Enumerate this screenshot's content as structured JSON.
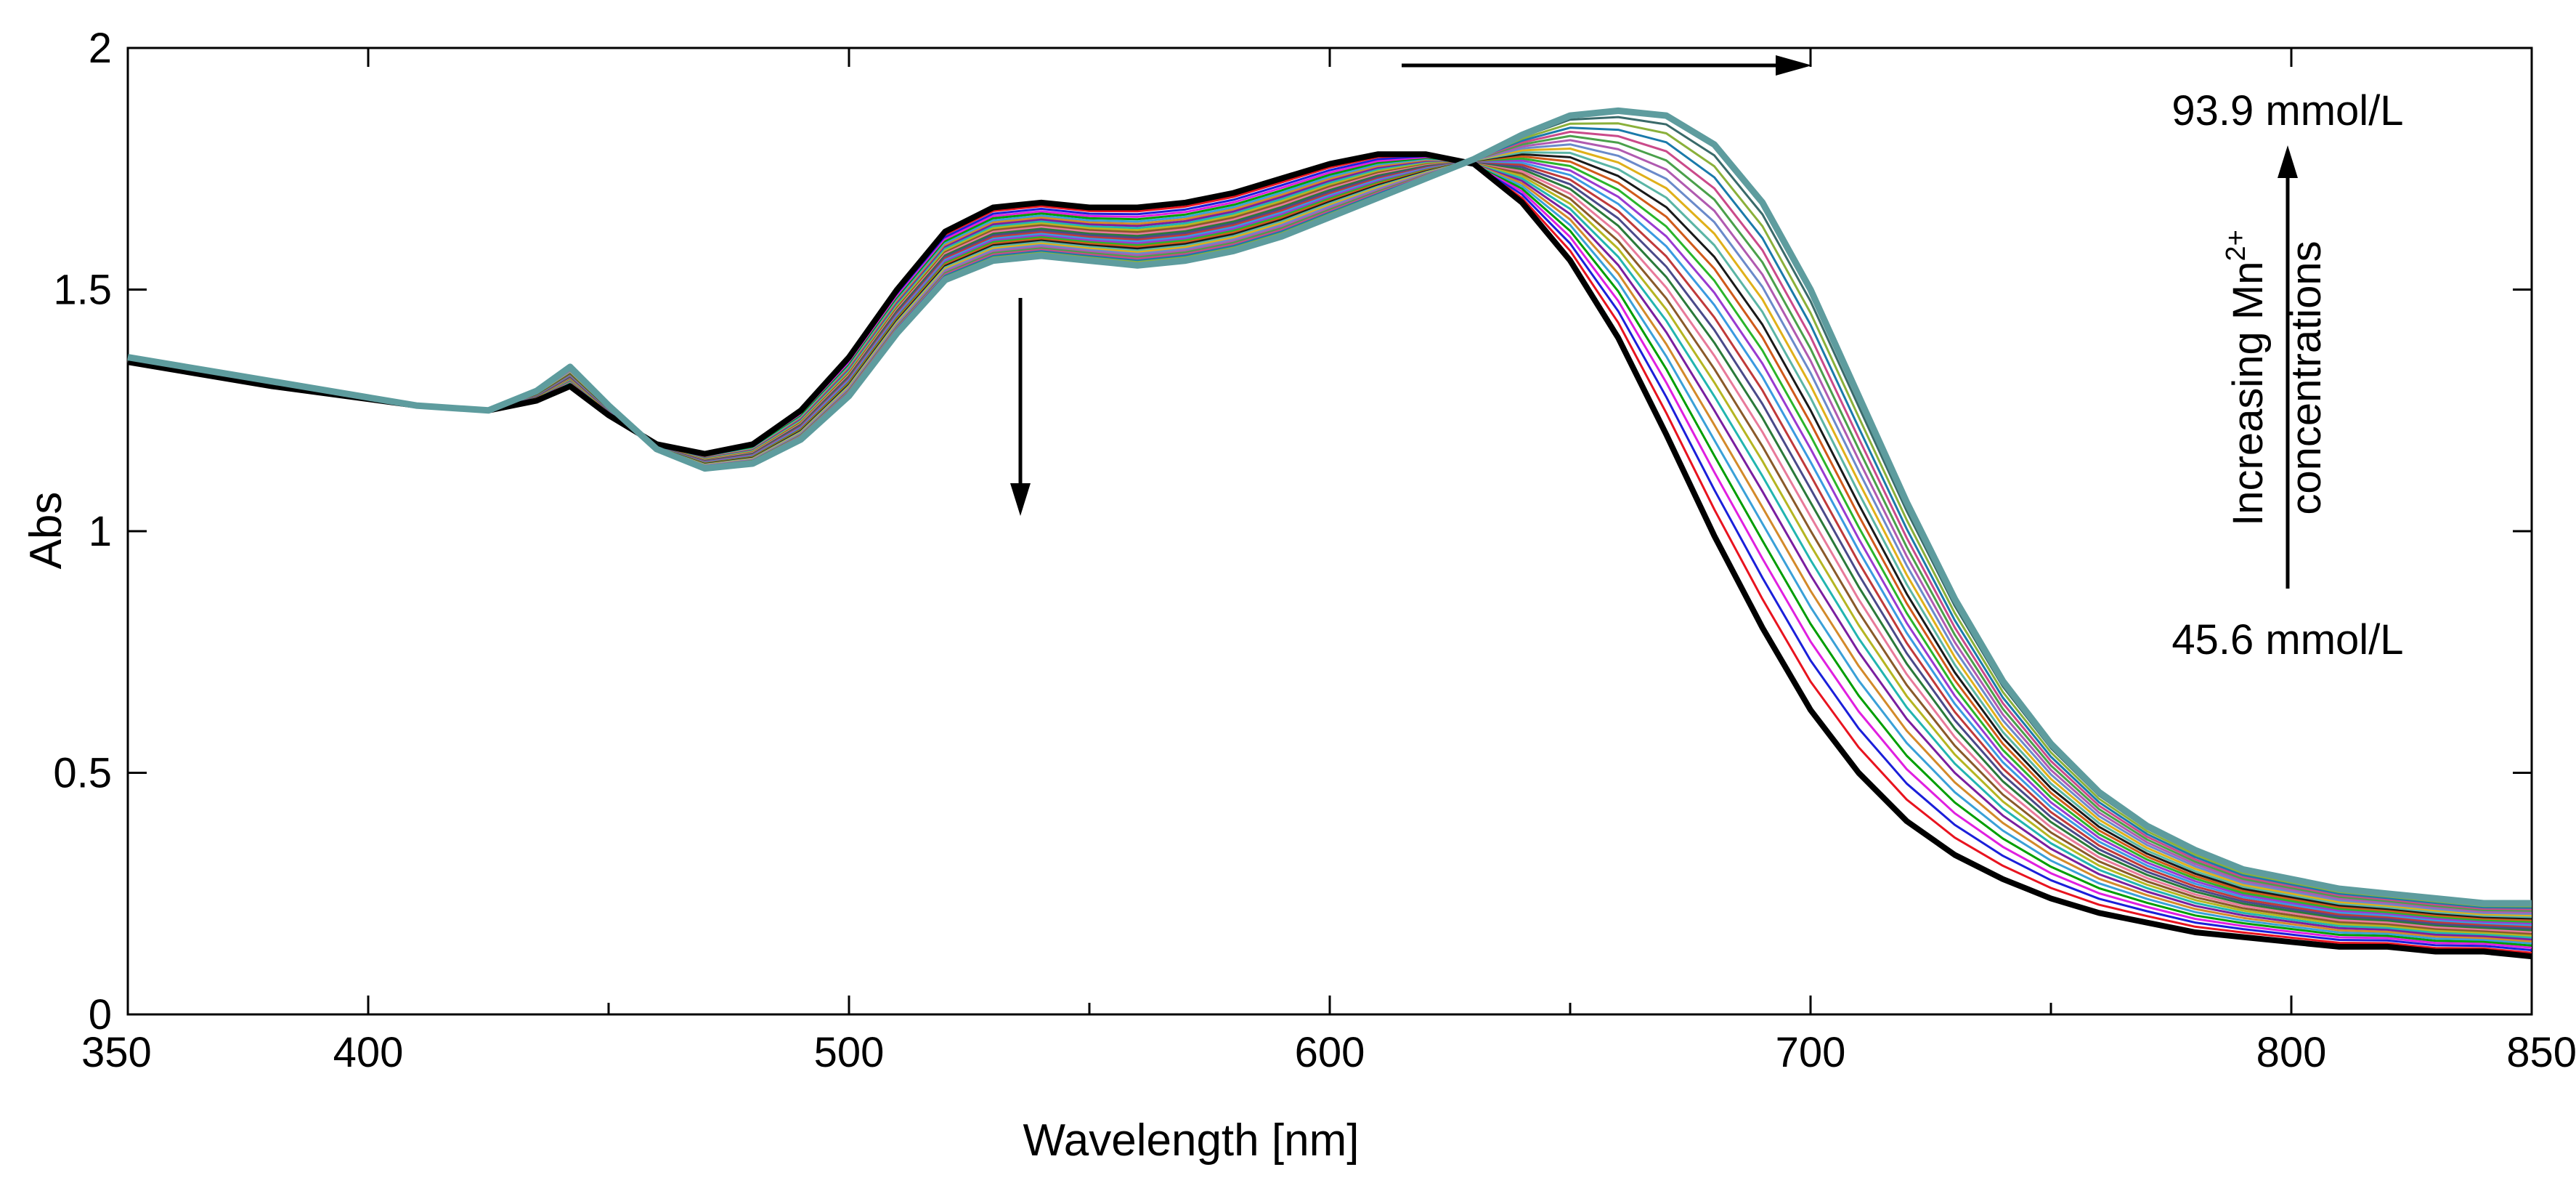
{
  "chart_data": {
    "type": "line",
    "title": "",
    "xlabel": "Wavelength [nm]",
    "ylabel": "Abs",
    "xlim": [
      350,
      850
    ],
    "ylim": [
      0,
      2
    ],
    "grid": false,
    "x_ticks": [
      350,
      400,
      500,
      600,
      700,
      800,
      850
    ],
    "x_tick_labels": [
      "350",
      "400",
      "500",
      "600",
      "700",
      "800",
      "850"
    ],
    "x_minor_ticks": [
      450,
      550,
      650,
      750
    ],
    "y_ticks": [
      0,
      0.5,
      1,
      1.5,
      2
    ],
    "y_tick_labels": [
      "0",
      "0.5",
      "1",
      "1.5",
      "2"
    ],
    "x": [
      350,
      380,
      410,
      425,
      435,
      442,
      450,
      460,
      470,
      480,
      490,
      500,
      510,
      520,
      530,
      540,
      550,
      560,
      570,
      580,
      590,
      600,
      610,
      620,
      630,
      640,
      650,
      660,
      670,
      680,
      690,
      700,
      710,
      720,
      730,
      740,
      750,
      760,
      770,
      780,
      790,
      800,
      810,
      820,
      830,
      840,
      850
    ],
    "series_count": 30,
    "series": [
      {
        "name": "45.6 mmol/L",
        "color": "#000000",
        "values": [
          1.35,
          1.3,
          1.26,
          1.25,
          1.27,
          1.3,
          1.24,
          1.18,
          1.16,
          1.18,
          1.25,
          1.36,
          1.5,
          1.62,
          1.67,
          1.68,
          1.67,
          1.67,
          1.68,
          1.7,
          1.73,
          1.76,
          1.78,
          1.78,
          1.76,
          1.68,
          1.56,
          1.4,
          1.2,
          0.99,
          0.8,
          0.63,
          0.5,
          0.4,
          0.33,
          0.28,
          0.24,
          0.21,
          0.19,
          0.17,
          0.16,
          0.15,
          0.14,
          0.14,
          0.13,
          0.13,
          0.12
        ]
      },
      {
        "name": "93.9 mmol/L",
        "color": "#5e9c9e",
        "values": [
          1.36,
          1.31,
          1.26,
          1.25,
          1.29,
          1.34,
          1.26,
          1.17,
          1.13,
          1.14,
          1.19,
          1.28,
          1.41,
          1.52,
          1.56,
          1.57,
          1.56,
          1.55,
          1.56,
          1.58,
          1.61,
          1.65,
          1.69,
          1.73,
          1.77,
          1.82,
          1.86,
          1.87,
          1.86,
          1.8,
          1.68,
          1.5,
          1.28,
          1.06,
          0.86,
          0.69,
          0.56,
          0.46,
          0.39,
          0.34,
          0.3,
          0.28,
          0.26,
          0.25,
          0.24,
          0.23,
          0.23
        ]
      }
    ],
    "annotations": {
      "top_label": "93.9 mmol/L",
      "bottom_label": "45.6 mmol/L",
      "vertical_label_line1": "Increasing Mn",
      "vertical_label_sup": "2+",
      "vertical_label_line2": "concentrations",
      "arrows": [
        "down near 535 nm (shoulder decreases)",
        "right across ~610–700 nm (peak shifts to longer wavelength)",
        "up along concentration label"
      ]
    },
    "series_colors": [
      "#000000",
      "#e8131f",
      "#1b1fd9",
      "#e01fe0",
      "#009e00",
      "#3aa0d8",
      "#d38a2a",
      "#7a1fa0",
      "#22b5b0",
      "#b5b522",
      "#8a5a2a",
      "#e87a9a",
      "#2a7a3a",
      "#4a4a8a",
      "#c03a3a",
      "#3a9ae0",
      "#9a3ad0",
      "#2ab52a",
      "#d05a1a",
      "#1a1a1a",
      "#5ab5a5",
      "#e0b01a",
      "#6a8aca",
      "#b05ab0",
      "#4aa04a",
      "#ca4a8a",
      "#1a7aaa",
      "#8ab03a",
      "#3a6a6a",
      "#5e9c9e"
    ]
  }
}
